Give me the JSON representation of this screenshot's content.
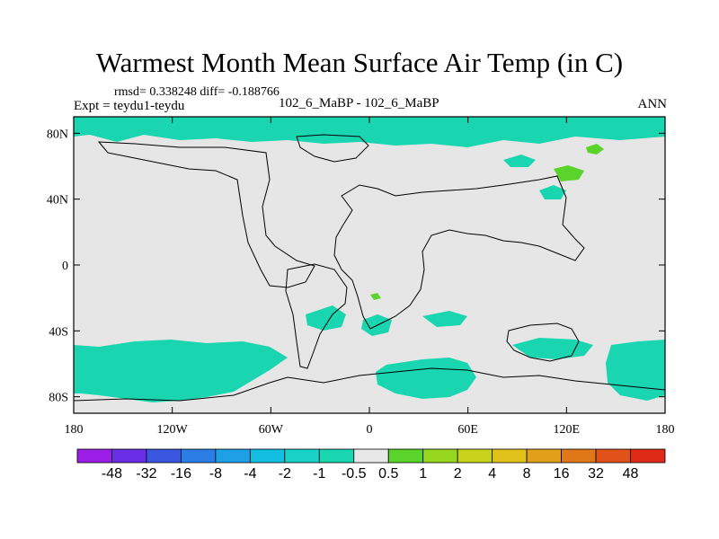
{
  "title": "Warmest Month Mean Surface Air Temp (in C)",
  "stats": "rmsd= 0.338248 diff= -0.188766",
  "experiment": "Expt = teydu1-teydu",
  "case": "102_6_MaBP - 102_6_MaBP",
  "season": "ANN",
  "lat_ticks": [
    {
      "value": 80,
      "label": "80N"
    },
    {
      "value": 40,
      "label": "40N"
    },
    {
      "value": 0,
      "label": "0"
    },
    {
      "value": -40,
      "label": "40S"
    },
    {
      "value": -80,
      "label": "80S"
    }
  ],
  "lon_ticks": [
    {
      "value": -180,
      "label": "180"
    },
    {
      "value": -120,
      "label": "120W"
    },
    {
      "value": -60,
      "label": "60W"
    },
    {
      "value": 0,
      "label": "0"
    },
    {
      "value": 60,
      "label": "60E"
    },
    {
      "value": 120,
      "label": "120E"
    },
    {
      "value": 180,
      "label": "180"
    }
  ],
  "colorbar": {
    "colors": [
      "#9a1ee6",
      "#6a2ee6",
      "#3a55e0",
      "#2a7ee6",
      "#1ea0e6",
      "#12bfe0",
      "#18d2c8",
      "#1ad6b0",
      "#e8e8e8",
      "#5ad42a",
      "#96d61e",
      "#c8d21a",
      "#e0c21a",
      "#e0a01a",
      "#e07818",
      "#e05218",
      "#e02a18"
    ],
    "labels": [
      "-48",
      "-32",
      "-16",
      "-8",
      "-4",
      "-2",
      "-1",
      "-0.5",
      "0.5",
      "1",
      "2",
      "4",
      "8",
      "16",
      "32",
      "48"
    ]
  },
  "colors": {
    "background": "#e6e6e6",
    "negative": "#1ad6b0",
    "positive": "#5ad42a",
    "coast": "#000000"
  }
}
